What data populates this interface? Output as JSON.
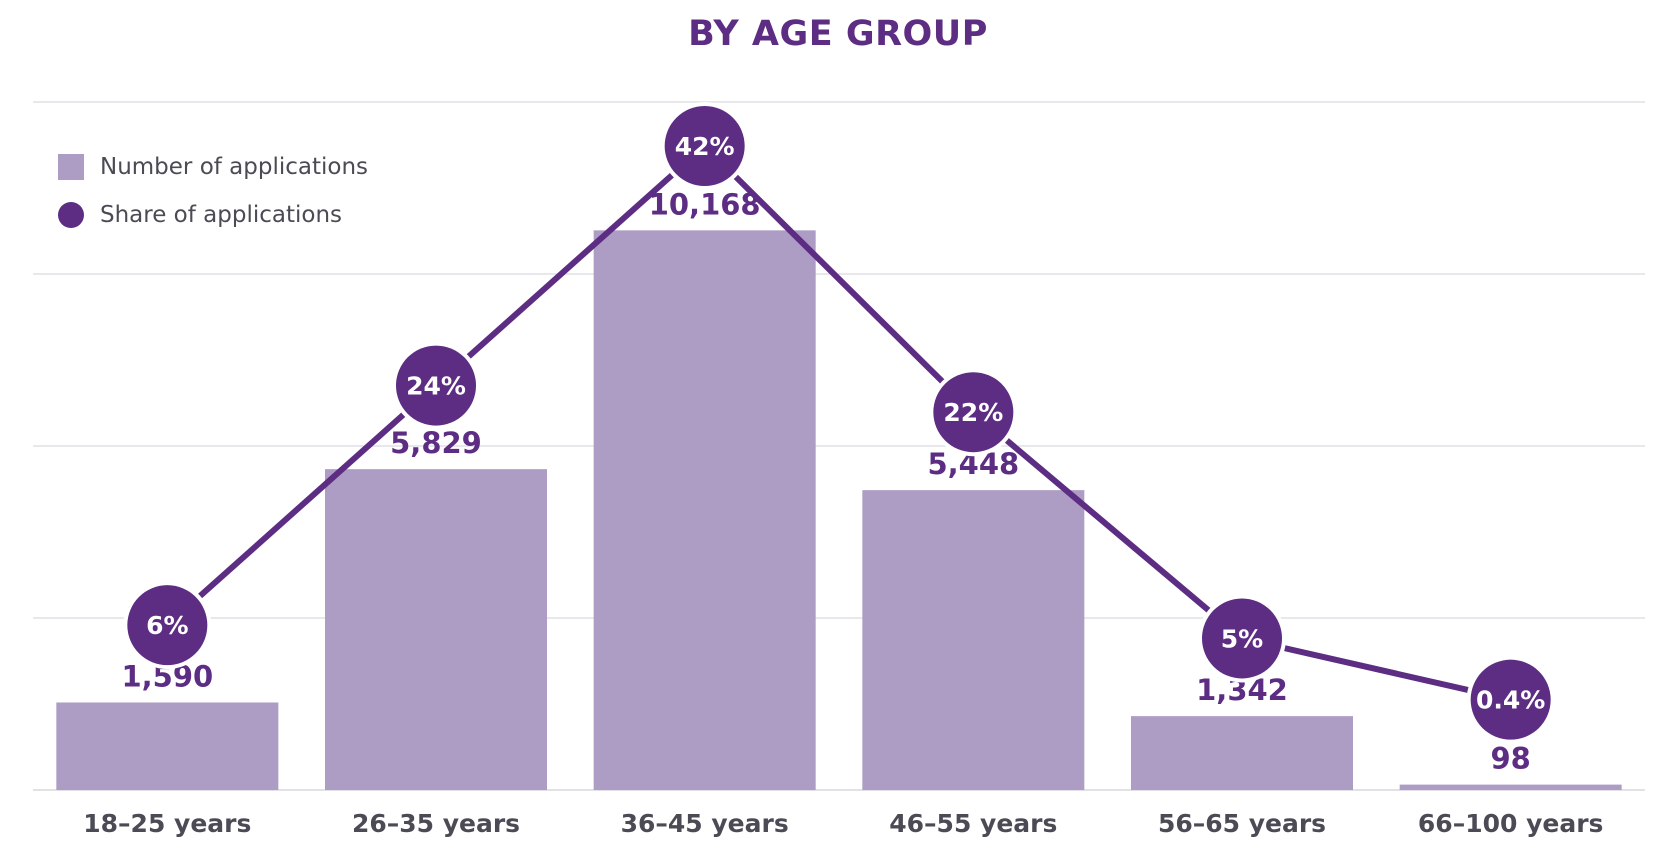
{
  "chart_data": {
    "type": "bar",
    "title": "BY AGE GROUP",
    "categories": [
      "18–25 years",
      "26–35 years",
      "36–45 years",
      "46–55 years",
      "56–65 years",
      "66–100 years"
    ],
    "series": [
      {
        "name": "Number of applications",
        "kind": "bar",
        "values": [
          1590,
          5829,
          10168,
          5448,
          1342,
          98
        ],
        "labels": [
          "1,590",
          "5,829",
          "10,168",
          "5,448",
          "1,342",
          "98"
        ],
        "color": "#ad9cc4"
      },
      {
        "name": "Share of applications",
        "kind": "line",
        "values": [
          6,
          24,
          42,
          22,
          5,
          0.4
        ],
        "labels": [
          "6%",
          "24%",
          "42%",
          "22%",
          "5%",
          "0.4%"
        ],
        "color": "#5c2d82"
      }
    ],
    "bar_axis_max": 12500,
    "share_axis_max": 50,
    "grid": true,
    "legend_position": "top-left"
  },
  "colors": {
    "accent": "#5c2d82",
    "bar": "#ad9cc4",
    "grid": "#e1e1e6",
    "tick_text": "#4b4b55"
  }
}
